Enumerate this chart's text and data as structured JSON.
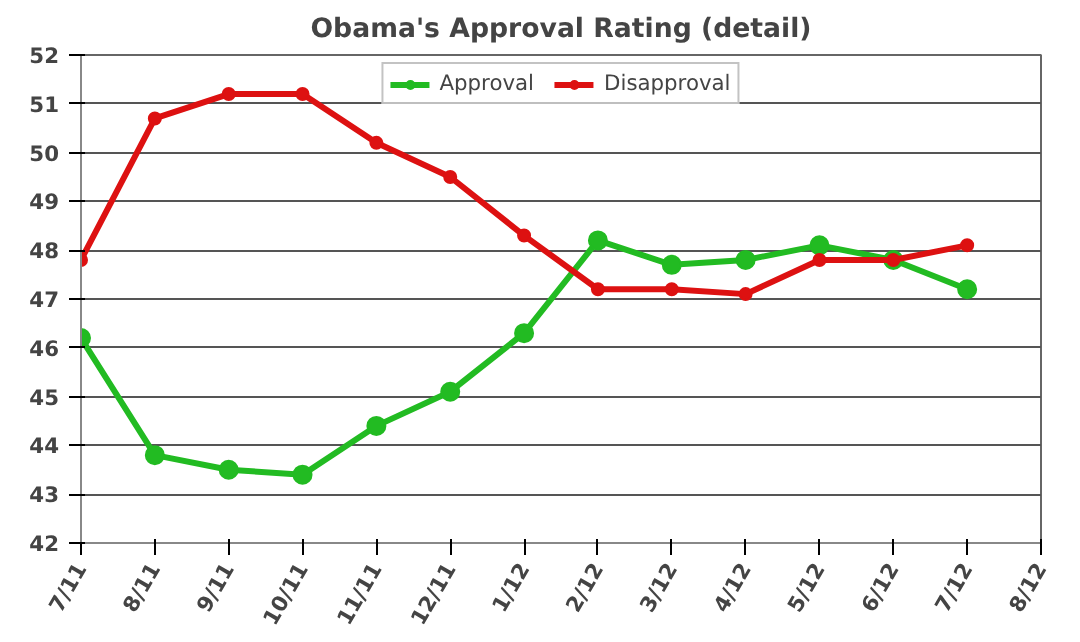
{
  "chart_data": {
    "type": "line",
    "title": "Obama's Approval Rating (detail)",
    "categories": [
      "7/11",
      "8/11",
      "9/11",
      "10/11",
      "11/11",
      "12/11",
      "1/12",
      "2/12",
      "3/12",
      "4/12",
      "5/12",
      "6/12",
      "7/12",
      "8/12"
    ],
    "series": [
      {
        "name": "Approval",
        "color": "#22bb22",
        "values": [
          46.2,
          43.8,
          43.5,
          43.4,
          44.4,
          45.1,
          46.3,
          48.2,
          47.7,
          47.8,
          48.1,
          47.8,
          47.2,
          null
        ]
      },
      {
        "name": "Disapproval",
        "color": "#dd1111",
        "values": [
          47.8,
          50.7,
          51.2,
          51.2,
          50.2,
          49.5,
          48.3,
          47.2,
          47.2,
          47.1,
          47.8,
          47.8,
          48.1,
          null
        ]
      }
    ],
    "ylim": [
      42,
      52
    ],
    "yticks": [
      42,
      43,
      44,
      45,
      46,
      47,
      48,
      49,
      50,
      51,
      52
    ],
    "grid": "y",
    "legend": "top",
    "marker": "circle",
    "line_style": "solid"
  }
}
